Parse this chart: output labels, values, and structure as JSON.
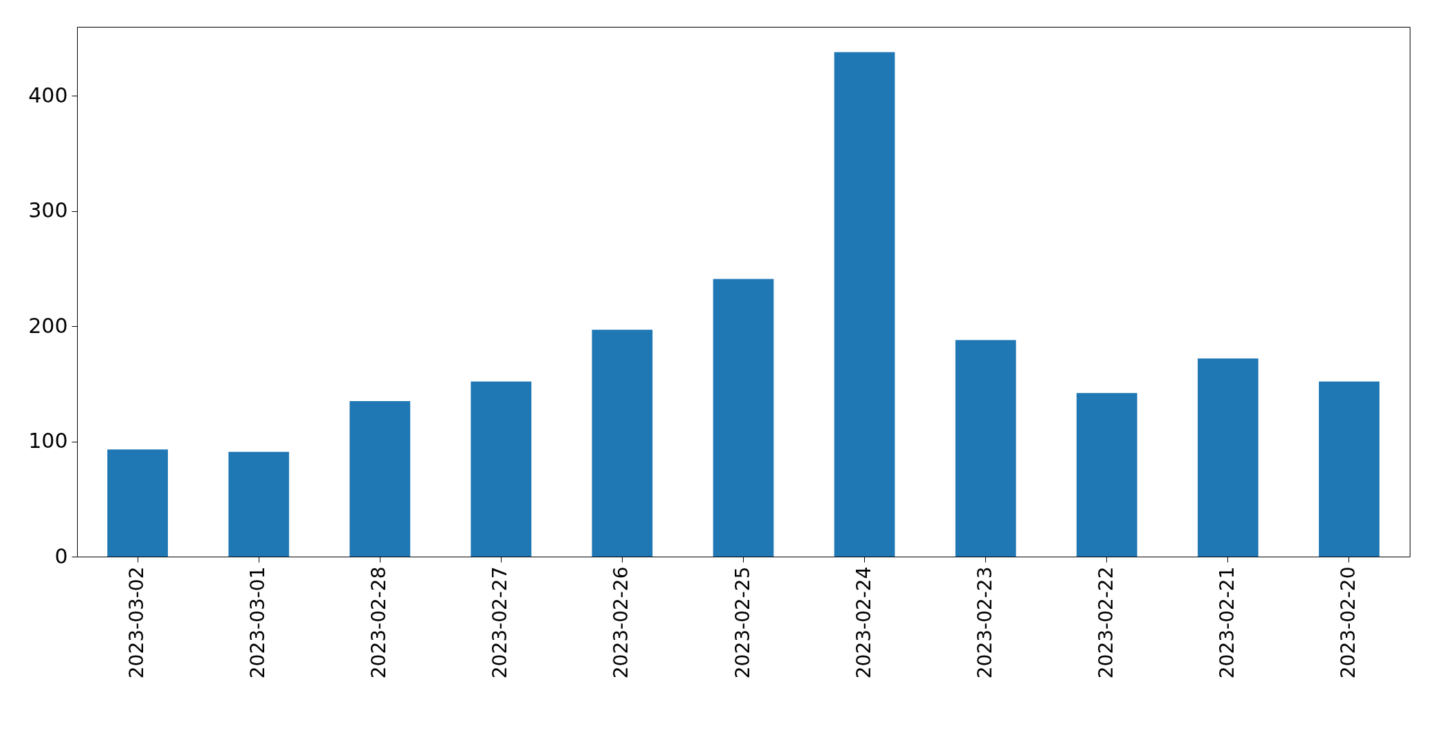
{
  "chart_data": {
    "type": "bar",
    "categories": [
      "2023-03-02",
      "2023-03-01",
      "2023-02-28",
      "2023-02-27",
      "2023-02-26",
      "2023-02-25",
      "2023-02-24",
      "2023-02-23",
      "2023-02-22",
      "2023-02-21",
      "2023-02-20"
    ],
    "values": [
      93,
      91,
      135,
      152,
      197,
      241,
      438,
      188,
      142,
      172,
      152
    ],
    "color": "#1f77b4",
    "ylim": [
      0,
      460
    ],
    "yticks": [
      0,
      100,
      200,
      300,
      400
    ],
    "grid": false
  }
}
